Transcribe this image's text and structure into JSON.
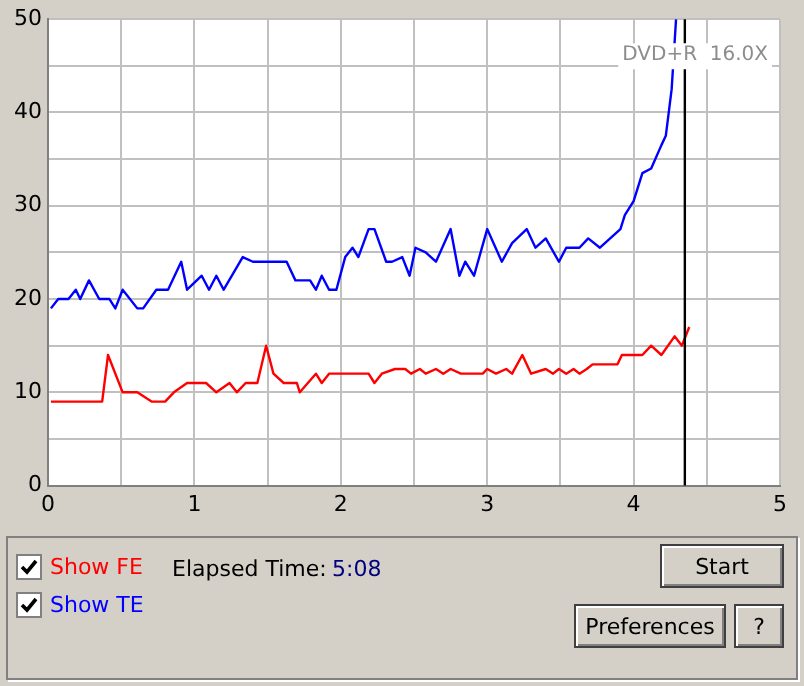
{
  "chart_data": {
    "type": "line",
    "annotations": [
      "DVD+R  16.0X",
      "Elapsed Time:",
      "5:08",
      "Start",
      "Preferences",
      "?"
    ],
    "xlim": [
      0,
      5
    ],
    "xticks": [
      0,
      {
        "value": 0.5,
        "label": null
      },
      1,
      {
        "value": 1.5,
        "label": null
      },
      2,
      {
        "value": 2.5,
        "label": null
      },
      3,
      {
        "value": 3.5,
        "label": null
      },
      4,
      {
        "value": 4.5,
        "label": null
      },
      5
    ],
    "ylim": [
      0,
      50
    ],
    "yticks": [
      0,
      {
        "value": 5,
        "label": null
      },
      10,
      {
        "value": 15,
        "label": null
      },
      20,
      {
        "value": 25,
        "label": null
      },
      30,
      {
        "value": 35,
        "label": null
      },
      40,
      {
        "value": 45,
        "label": null
      },
      50
    ],
    "grid": true,
    "legend": "bottom",
    "marker": "none",
    "ref_lines": [
      {
        "axis": "x",
        "value": 4.35,
        "color": "#000000"
      }
    ],
    "series": [
      {
        "name": "Show FE",
        "color": "#ff0000",
        "x": [
          0.02,
          0.37,
          0.41,
          0.51,
          0.61,
          0.71,
          0.8,
          0.86,
          0.95,
          1.08,
          1.15,
          1.24,
          1.29,
          1.35,
          1.43,
          1.49,
          1.54,
          1.61,
          1.7,
          1.72,
          1.83,
          1.87,
          1.92,
          2.19,
          2.23,
          2.28,
          2.37,
          2.44,
          2.48,
          2.54,
          2.58,
          2.65,
          2.7,
          2.75,
          2.82,
          2.97,
          3.0,
          3.06,
          3.13,
          3.17,
          3.24,
          3.3,
          3.4,
          3.45,
          3.49,
          3.54,
          3.59,
          3.63,
          3.68,
          3.72,
          3.89,
          3.92,
          4.06,
          4.12,
          4.19,
          4.28,
          4.33,
          4.38
        ],
        "values": [
          9,
          9,
          14,
          10,
          10,
          9,
          9,
          10,
          11,
          11,
          10,
          11,
          10,
          11,
          11,
          15,
          12,
          11,
          11,
          10,
          12,
          11,
          12,
          12,
          11,
          12,
          12.5,
          12.5,
          12,
          12.5,
          12,
          12.5,
          12,
          12.5,
          12,
          12,
          12.5,
          12,
          12.5,
          12,
          14,
          12,
          12.5,
          12,
          12.5,
          12,
          12.5,
          12,
          12.5,
          13,
          13,
          14,
          14,
          15,
          14,
          16,
          15,
          17
        ]
      },
      {
        "name": "Show TE",
        "color": "#0000ff",
        "x": [
          0.02,
          0.07,
          0.14,
          0.19,
          0.22,
          0.28,
          0.35,
          0.42,
          0.46,
          0.51,
          0.61,
          0.65,
          0.74,
          0.82,
          0.91,
          0.95,
          1.05,
          1.1,
          1.15,
          1.2,
          1.33,
          1.4,
          1.63,
          1.69,
          1.79,
          1.83,
          1.87,
          1.92,
          1.97,
          2.03,
          2.08,
          2.12,
          2.19,
          2.23,
          2.31,
          2.35,
          2.42,
          2.47,
          2.51,
          2.58,
          2.65,
          2.75,
          2.81,
          2.85,
          2.91,
          3.0,
          3.1,
          3.17,
          3.27,
          3.33,
          3.4,
          3.49,
          3.54,
          3.63,
          3.69,
          3.77,
          3.84,
          3.91,
          3.94,
          4.0,
          4.06,
          4.12,
          4.19,
          4.22,
          4.26,
          4.28,
          4.29
        ],
        "values": [
          19,
          20,
          20,
          21,
          20,
          22,
          20,
          20,
          19,
          21,
          19,
          19,
          21,
          21,
          24,
          21,
          22.5,
          21,
          22.5,
          21,
          24.5,
          24,
          24,
          22,
          22,
          21,
          22.5,
          21,
          21,
          24.5,
          25.5,
          24.5,
          27.5,
          27.5,
          24,
          24,
          24.5,
          22.5,
          25.5,
          25,
          24,
          27.5,
          22.5,
          24,
          22.5,
          27.5,
          24,
          26,
          27.5,
          25.5,
          26.5,
          24,
          25.5,
          25.5,
          26.5,
          25.5,
          26.5,
          27.5,
          29,
          30.5,
          33.5,
          34,
          36.5,
          37.5,
          42.5,
          47.5,
          50
        ]
      }
    ]
  }
}
